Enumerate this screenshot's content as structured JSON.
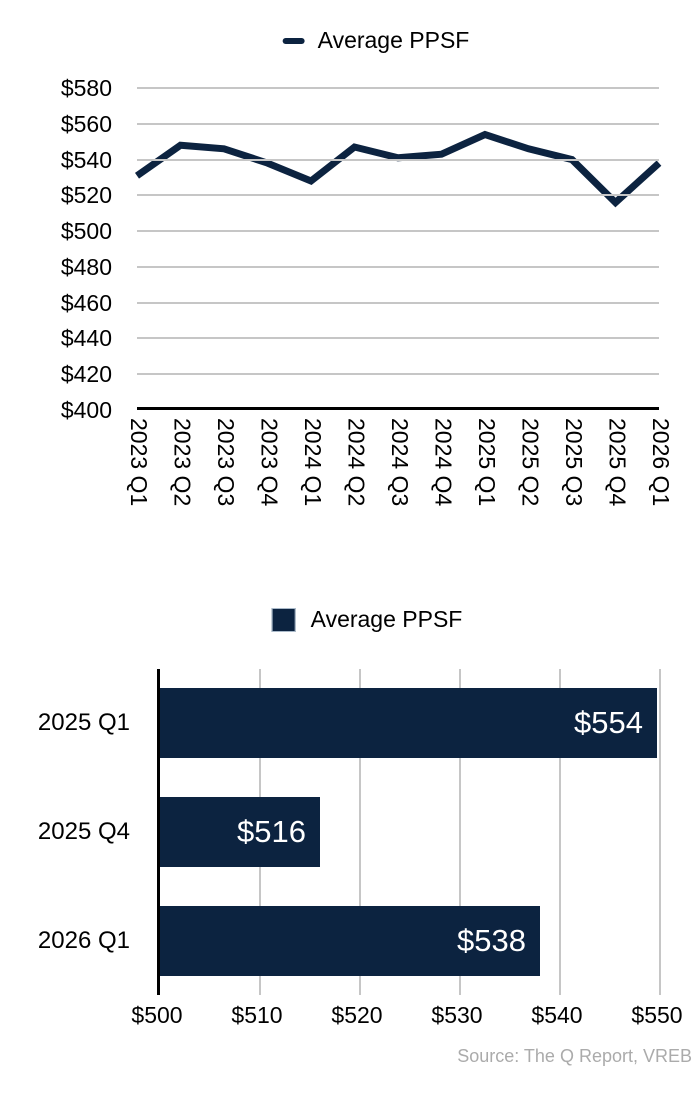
{
  "colors": {
    "series": "#0c2340",
    "gridline": "#c6c6c6",
    "axis": "#000000",
    "source_text": "#ababab",
    "bar_value_label": "#ffffff",
    "legend_swatch_border": "#a9b9c9"
  },
  "source_note": "Source: The Q Report, VREB",
  "chart_data": [
    {
      "type": "line",
      "title": "",
      "legend": [
        "Average PPSF"
      ],
      "legend_position": "top-center",
      "grid": true,
      "x": [
        "2023 Q1",
        "2023 Q2",
        "2023 Q3",
        "2023 Q4",
        "2024 Q1",
        "2024 Q2",
        "2024 Q3",
        "2024 Q4",
        "2025 Q1",
        "2025 Q2",
        "2025 Q3",
        "2025 Q4",
        "2026 Q1"
      ],
      "series": [
        {
          "name": "Average PPSF",
          "values": [
            531,
            548,
            546,
            538,
            528,
            547,
            541,
            543,
            554,
            546,
            540,
            516,
            538
          ]
        }
      ],
      "ylim": [
        400,
        580
      ],
      "ytick_values": [
        400,
        420,
        440,
        460,
        480,
        500,
        520,
        540,
        560,
        580
      ],
      "ytick_labels": [
        "$400",
        "$420",
        "$440",
        "$460",
        "$480",
        "$500",
        "$520",
        "$540",
        "$560",
        "$580"
      ]
    },
    {
      "type": "bar",
      "orientation": "horizontal",
      "title": "",
      "legend": [
        "Average PPSF"
      ],
      "legend_position": "top-center",
      "grid": true,
      "categories": [
        "2025 Q1",
        "2025 Q4",
        "2026 Q1"
      ],
      "values": [
        554,
        516,
        538
      ],
      "value_labels": [
        "$554",
        "$516",
        "$538"
      ],
      "xlim": [
        500,
        550
      ],
      "xtick_values": [
        500,
        510,
        520,
        530,
        540,
        550
      ],
      "xtick_labels": [
        "$500",
        "$510",
        "$520",
        "$530",
        "$540",
        "$550"
      ]
    }
  ]
}
